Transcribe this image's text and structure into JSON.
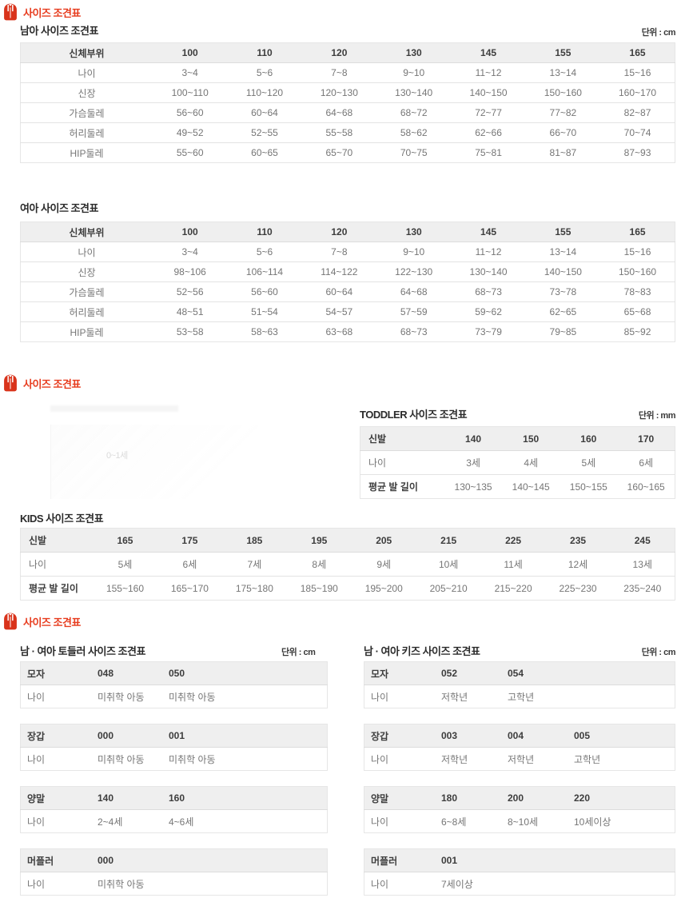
{
  "colors": {
    "accent_red": "#e73c1e",
    "header_bg": "#efefef",
    "cell_text": "#767676"
  },
  "section1": {
    "header": "사이즈 조견표",
    "boys": {
      "title": "남아 사이즈 조견표",
      "unit": "단위 : cm",
      "columns": [
        "신체부위",
        "100",
        "110",
        "120",
        "130",
        "145",
        "155",
        "165"
      ],
      "rows": [
        [
          "나이",
          "3~4",
          "5~6",
          "7~8",
          "9~10",
          "11~12",
          "13~14",
          "15~16"
        ],
        [
          "신장",
          "100~110",
          "110~120",
          "120~130",
          "130~140",
          "140~150",
          "150~160",
          "160~170"
        ],
        [
          "가슴둘레",
          "56~60",
          "60~64",
          "64~68",
          "68~72",
          "72~77",
          "77~82",
          "82~87"
        ],
        [
          "허리둘레",
          "49~52",
          "52~55",
          "55~58",
          "58~62",
          "62~66",
          "66~70",
          "70~74"
        ],
        [
          "HIP둘레",
          "55~60",
          "60~65",
          "65~70",
          "70~75",
          "75~81",
          "81~87",
          "87~93"
        ]
      ]
    },
    "girls": {
      "title": "여아 사이즈 조견표",
      "columns": [
        "신체부위",
        "100",
        "110",
        "120",
        "130",
        "145",
        "155",
        "165"
      ],
      "rows": [
        [
          "나이",
          "3~4",
          "5~6",
          "7~8",
          "9~10",
          "11~12",
          "13~14",
          "15~16"
        ],
        [
          "신장",
          "98~106",
          "106~114",
          "114~122",
          "122~130",
          "130~140",
          "140~150",
          "150~160"
        ],
        [
          "가슴둘레",
          "52~56",
          "56~60",
          "60~64",
          "64~68",
          "68~73",
          "73~78",
          "78~83"
        ],
        [
          "허리둘레",
          "48~51",
          "51~54",
          "54~57",
          "57~59",
          "59~62",
          "62~65",
          "65~68"
        ],
        [
          "HIP둘레",
          "53~58",
          "58~63",
          "63~68",
          "68~73",
          "73~79",
          "79~85",
          "85~92"
        ]
      ]
    }
  },
  "section2": {
    "header": "사이즈 조견표",
    "ghost_text": "0~1세",
    "toddler": {
      "title": "TODDLER 사이즈 조견표",
      "unit": "단위 : mm",
      "columns": [
        "신발",
        "140",
        "150",
        "160",
        "170"
      ],
      "rows": [
        [
          "나이",
          "3세",
          "4세",
          "5세",
          "6세"
        ],
        [
          "평균 발 길이",
          "130~135",
          "140~145",
          "150~155",
          "160~165"
        ]
      ]
    },
    "kids": {
      "title": "KIDS 사이즈 조견표",
      "columns": [
        "신발",
        "165",
        "175",
        "185",
        "195",
        "205",
        "215",
        "225",
        "235",
        "245"
      ],
      "rows": [
        [
          "나이",
          "5세",
          "6세",
          "7세",
          "8세",
          "9세",
          "10세",
          "11세",
          "12세",
          "13세"
        ],
        [
          "평균 발 길이",
          "155~160",
          "165~170",
          "175~180",
          "185~190",
          "195~200",
          "205~210",
          "215~220",
          "225~230",
          "235~240"
        ]
      ]
    }
  },
  "section3": {
    "header": "사이즈 조견표",
    "toddler_col": {
      "title": "남 · 여아 토들러 사이즈 조견표",
      "unit": "단위 : cm",
      "tables": [
        {
          "columns": [
            "모자",
            "048",
            "050"
          ],
          "rows": [
            [
              "나이",
              "미취학 아동",
              "미취학 아동"
            ]
          ]
        },
        {
          "columns": [
            "장갑",
            "000",
            "001"
          ],
          "rows": [
            [
              "나이",
              "미취학 아동",
              "미취학 아동"
            ]
          ]
        },
        {
          "columns": [
            "양말",
            "140",
            "160"
          ],
          "rows": [
            [
              "나이",
              "2~4세",
              "4~6세"
            ]
          ]
        },
        {
          "columns": [
            "머플러",
            "000"
          ],
          "rows": [
            [
              "나이",
              "미취학 아동"
            ]
          ]
        }
      ]
    },
    "kids_col": {
      "title": "남 · 여아 키즈 사이즈 조견표",
      "unit": "단위 : cm",
      "tables": [
        {
          "columns": [
            "모자",
            "052",
            "054"
          ],
          "rows": [
            [
              "나이",
              "저학년",
              "고학년"
            ]
          ]
        },
        {
          "columns": [
            "장갑",
            "003",
            "004",
            "005"
          ],
          "rows": [
            [
              "나이",
              "저학년",
              "저학년",
              "고학년"
            ]
          ]
        },
        {
          "columns": [
            "양말",
            "180",
            "200",
            "220"
          ],
          "rows": [
            [
              "나이",
              "6~8세",
              "8~10세",
              "10세이상"
            ]
          ]
        },
        {
          "columns": [
            "머플러",
            "001"
          ],
          "rows": [
            [
              "나이",
              "7세이상"
            ]
          ]
        }
      ]
    }
  }
}
